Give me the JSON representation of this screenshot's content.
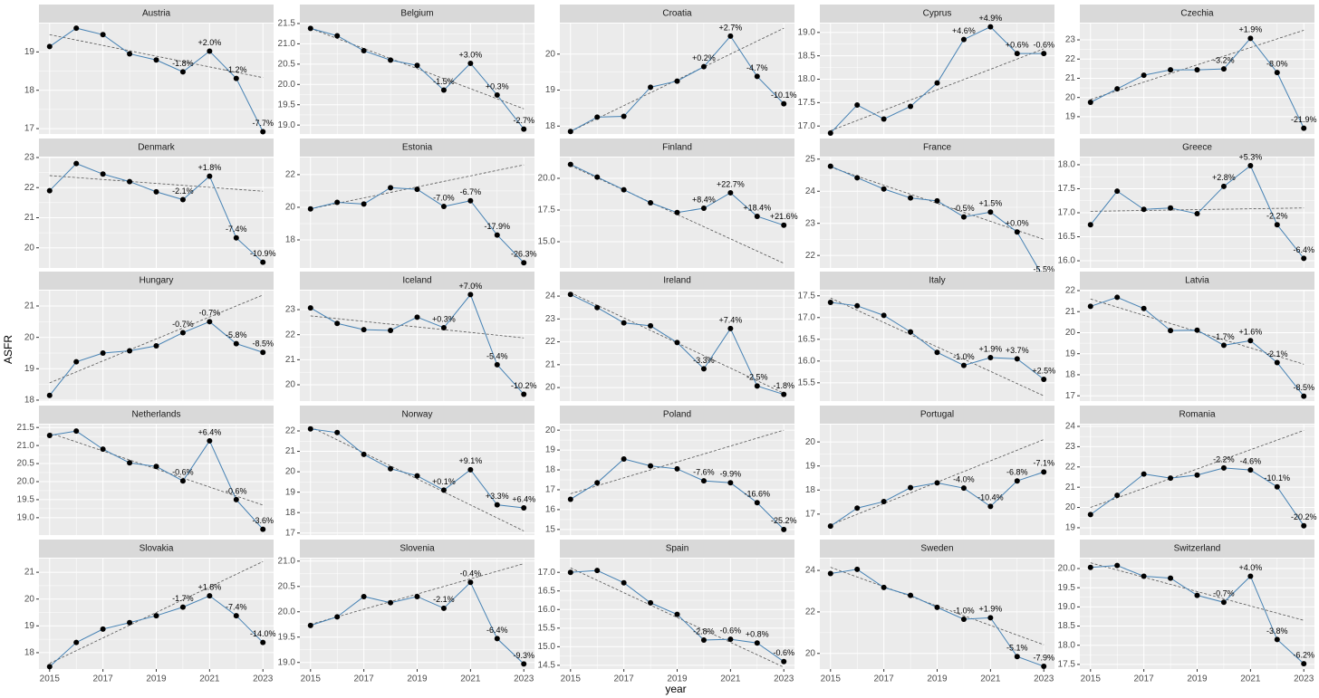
{
  "chart_data": {
    "type": "line",
    "x_label": "year",
    "y_label": "ASFR",
    "x": [
      2015,
      2016,
      2017,
      2018,
      2019,
      2020,
      2021,
      2022,
      2023
    ],
    "xlim": [
      2014.6,
      2023.4
    ],
    "xticks": [
      2015,
      2017,
      2019,
      2021,
      2023
    ],
    "annotation_x": [
      2020,
      2021,
      2022,
      2023
    ],
    "color": "#4682b4",
    "point_color": "#000000",
    "trend_color": "#555555",
    "grid": true,
    "panels": [
      {
        "title": "Austria",
        "values": [
          19.14,
          19.62,
          19.45,
          18.95,
          18.79,
          18.48,
          19.02,
          18.31,
          16.92
        ],
        "trend": [
          19.45,
          18.33
        ],
        "annotations": [
          "-1.8%",
          "+2.0%",
          "-1.2%",
          "-7.7%"
        ],
        "ylim": [
          16.86,
          19.74
        ],
        "yticks": [
          17,
          18,
          19
        ]
      },
      {
        "title": "Belgium",
        "values": [
          21.38,
          21.2,
          20.83,
          20.6,
          20.47,
          19.86,
          20.52,
          19.74,
          18.9
        ],
        "trend": [
          21.38,
          19.4
        ],
        "annotations": [
          "-1.5%",
          "+3.0%",
          "+0.3%",
          "-2.7%"
        ],
        "ylim": [
          18.78,
          21.5
        ],
        "yticks": [
          {
            "value": 19,
            "label": "19.0"
          },
          19.5,
          {
            "value": 20,
            "label": "20.0"
          },
          20.5,
          {
            "value": 21,
            "label": "21.0"
          },
          21.5
        ]
      },
      {
        "title": "Croatia",
        "values": [
          17.85,
          18.25,
          18.27,
          19.08,
          19.25,
          19.65,
          20.5,
          19.38,
          18.62
        ],
        "trend": [
          17.85,
          20.72
        ],
        "annotations": [
          "+0.2%",
          "+2.7%",
          "-4.7%",
          "-10.1%"
        ],
        "ylim": [
          17.78,
          20.85
        ],
        "yticks": [
          18,
          19,
          20
        ]
      },
      {
        "title": "Cyprus",
        "values": [
          16.85,
          17.45,
          17.15,
          17.42,
          17.92,
          18.85,
          19.12,
          18.55,
          18.55
        ],
        "trend": [
          16.9,
          18.65
        ],
        "annotations": [
          "+4.6%",
          "+4.9%",
          "+0.6%",
          "-0.6%"
        ],
        "ylim": [
          16.83,
          19.19
        ],
        "yticks": [
          {
            "value": 17,
            "label": "17.0"
          },
          17.5,
          {
            "value": 18,
            "label": "18.0"
          },
          18.5,
          {
            "value": 19,
            "label": "19.0"
          }
        ]
      },
      {
        "title": "Czechia",
        "values": [
          19.75,
          20.45,
          21.16,
          21.44,
          21.44,
          21.49,
          23.08,
          21.3,
          18.4
        ],
        "trend": [
          19.9,
          23.5
        ],
        "annotations": [
          "-3.2%",
          "+1.9%",
          "-8.0%",
          "-21.9%"
        ],
        "ylim": [
          18.1,
          23.85
        ],
        "yticks": [
          19,
          20,
          21,
          22,
          23
        ]
      },
      {
        "title": "Denmark",
        "values": [
          21.9,
          22.8,
          22.45,
          22.2,
          21.86,
          21.6,
          22.38,
          20.33,
          19.52
        ],
        "trend": [
          22.4,
          21.88
        ],
        "annotations": [
          "-2.1%",
          "+1.8%",
          "-7.4%",
          "-10.9%"
        ],
        "ylim": [
          19.33,
          23.0
        ],
        "yticks": [
          20,
          21,
          22,
          23
        ]
      },
      {
        "title": "Estonia",
        "values": [
          19.9,
          20.3,
          20.2,
          21.2,
          21.1,
          20.05,
          20.4,
          18.3,
          16.6
        ],
        "trend": [
          19.9,
          22.6
        ],
        "annotations": [
          "-7.0%",
          "-6.7%",
          "-17.9%",
          "-26.3%"
        ],
        "ylim": [
          16.28,
          23.05
        ],
        "yticks": [
          18,
          20,
          22
        ]
      },
      {
        "title": "Finland",
        "values": [
          21.1,
          20.1,
          19.1,
          18.07,
          17.3,
          17.64,
          18.86,
          17.0,
          16.3
        ],
        "trend": [
          21.0,
          13.3
        ],
        "annotations": [
          "+8.4%",
          "+22.7%",
          "+18.4%",
          "+21.6%"
        ],
        "ylim": [
          12.93,
          21.64
        ],
        "yticks": [
          {
            "value": 15,
            "label": "15.0"
          },
          17.5,
          {
            "value": 20,
            "label": "20.0"
          }
        ]
      },
      {
        "title": "France",
        "values": [
          24.78,
          24.42,
          24.07,
          23.79,
          23.7,
          23.2,
          23.35,
          22.73,
          21.3
        ],
        "trend": [
          24.75,
          22.5
        ],
        "annotations": [
          "-0.5%",
          "+1.5%",
          "+0.0%",
          "-5.5%"
        ],
        "ylim": [
          21.61,
          25.05
        ],
        "yticks": [
          22,
          23,
          24,
          25
        ]
      },
      {
        "title": "Greece",
        "values": [
          16.75,
          17.45,
          17.07,
          17.1,
          16.98,
          17.55,
          17.98,
          16.75,
          16.05
        ],
        "trend": [
          17.03,
          17.1
        ],
        "annotations": [
          "+2.8%",
          "+5.3%",
          "-2.2%",
          "-6.4%"
        ],
        "ylim": [
          15.85,
          18.15
        ],
        "yticks": [
          {
            "value": 16,
            "label": "16.0"
          },
          16.5,
          {
            "value": 17,
            "label": "17.0"
          },
          17.5,
          {
            "value": 18,
            "label": "18.0"
          }
        ]
      },
      {
        "title": "Hungary",
        "values": [
          18.15,
          19.22,
          19.5,
          19.57,
          19.73,
          20.15,
          20.5,
          19.8,
          19.52
        ],
        "trend": [
          18.55,
          21.35
        ],
        "annotations": [
          "-0.7%",
          "-0.7%",
          "-5.8%",
          "-8.5%"
        ],
        "ylim": [
          17.97,
          21.49
        ],
        "yticks": [
          18,
          19,
          20,
          21
        ]
      },
      {
        "title": "Iceland",
        "values": [
          23.07,
          22.45,
          22.2,
          22.17,
          22.7,
          22.28,
          23.6,
          20.8,
          19.62
        ],
        "trend": [
          22.75,
          21.87
        ],
        "annotations": [
          "+0.3%",
          "+7.0%",
          "-5.4%",
          "-10.2%"
        ],
        "ylim": [
          19.35,
          23.76
        ],
        "yticks": [
          20,
          21,
          22,
          23
        ]
      },
      {
        "title": "Ireland",
        "values": [
          24.07,
          23.5,
          22.83,
          22.7,
          21.97,
          20.82,
          22.58,
          20.07,
          19.7
        ],
        "trend": [
          24.15,
          19.75
        ],
        "annotations": [
          "-3.3%",
          "+7.4%",
          "-2.5%",
          "-1.8%"
        ],
        "ylim": [
          19.41,
          24.24
        ],
        "yticks": [
          20,
          21,
          22,
          23,
          24
        ]
      },
      {
        "title": "Italy",
        "values": [
          17.35,
          17.27,
          17.05,
          16.67,
          16.2,
          15.9,
          16.08,
          16.05,
          15.58
        ],
        "trend": [
          17.45,
          15.2
        ],
        "annotations": [
          "-1.0%",
          "+1.9%",
          "+3.7%",
          "+2.5%"
        ],
        "ylim": [
          15.08,
          17.62
        ],
        "yticks": [
          15.5,
          {
            "value": 16,
            "label": "16.0"
          },
          16.5,
          {
            "value": 17,
            "label": "17.0"
          },
          17.5
        ]
      },
      {
        "title": "Latvia",
        "values": [
          21.25,
          21.68,
          21.15,
          20.1,
          20.12,
          19.4,
          19.62,
          18.58,
          16.98
        ],
        "trend": [
          21.6,
          18.5
        ],
        "annotations": [
          "-1.7%",
          "+1.6%",
          "-2.1%",
          "-8.5%"
        ],
        "ylim": [
          16.75,
          22.0
        ],
        "yticks": [
          17,
          18,
          19,
          20,
          21,
          22
        ]
      },
      {
        "title": "Netherlands",
        "values": [
          21.28,
          21.4,
          20.9,
          20.52,
          20.42,
          20.02,
          21.13,
          19.5,
          18.68
        ],
        "trend": [
          21.35,
          19.35
        ],
        "annotations": [
          "-0.6%",
          "+6.4%",
          "-0.6%",
          "-3.6%"
        ],
        "ylim": [
          18.52,
          21.58
        ],
        "yticks": [
          {
            "value": 19,
            "label": "19.0"
          },
          19.5,
          {
            "value": 20,
            "label": "20.0"
          },
          20.5,
          {
            "value": 21,
            "label": "21.0"
          },
          21.5
        ]
      },
      {
        "title": "Norway",
        "values": [
          22.1,
          21.92,
          20.85,
          20.15,
          19.8,
          19.1,
          20.1,
          18.38,
          18.23
        ],
        "trend": [
          22.2,
          17.1
        ],
        "annotations": [
          "+0.1%",
          "+9.1%",
          "+3.3%",
          "+6.4%"
        ],
        "ylim": [
          16.9,
          22.31
        ],
        "yticks": [
          17,
          18,
          19,
          20,
          21,
          22
        ]
      },
      {
        "title": "Poland",
        "values": [
          16.52,
          17.35,
          18.55,
          18.2,
          18.05,
          17.45,
          17.35,
          16.35,
          15.0
        ],
        "trend": [
          16.8,
          20.0
        ],
        "annotations": [
          "-7.6%",
          "-9.9%",
          "-16.6%",
          "-25.2%"
        ],
        "ylim": [
          14.72,
          20.28
        ],
        "yticks": [
          15,
          16,
          17,
          18,
          19,
          20
        ]
      },
      {
        "title": "Portugal",
        "values": [
          16.5,
          17.25,
          17.52,
          18.1,
          18.3,
          18.08,
          17.32,
          18.38,
          18.75
        ],
        "trend": [
          16.55,
          20.1
        ],
        "annotations": [
          "-4.0%",
          "-10.4%",
          "-6.8%",
          "-7.1%"
        ],
        "ylim": [
          16.13,
          20.72
        ],
        "yticks": [
          17,
          18,
          19,
          20
        ]
      },
      {
        "title": "Romania",
        "values": [
          19.65,
          20.6,
          21.65,
          21.45,
          21.6,
          21.95,
          21.85,
          21.02,
          19.1
        ],
        "trend": [
          20.0,
          23.8
        ],
        "annotations": [
          "-2.2%",
          "-4.6%",
          "-10.1%",
          "-20.2%"
        ],
        "ylim": [
          18.64,
          24.09
        ],
        "yticks": [
          19,
          20,
          21,
          22,
          23,
          24
        ]
      },
      {
        "title": "Slovakia",
        "values": [
          17.48,
          18.38,
          18.88,
          19.12,
          19.38,
          19.7,
          20.12,
          19.38,
          18.38
        ],
        "trend": [
          17.6,
          21.4
        ],
        "annotations": [
          "-1.7%",
          "+1.8%",
          "-7.4%",
          "-14.0%"
        ],
        "ylim": [
          17.39,
          21.51
        ],
        "yticks": [
          18,
          19,
          20,
          21
        ]
      },
      {
        "title": "Slovenia",
        "values": [
          19.73,
          19.9,
          20.3,
          20.18,
          20.3,
          20.07,
          20.58,
          19.47,
          18.97
        ],
        "trend": [
          19.75,
          20.95
        ],
        "annotations": [
          "-2.1%",
          "-0.4%",
          "-6.4%",
          "-9.3%"
        ],
        "ylim": [
          18.87,
          21.05
        ],
        "yticks": [
          {
            "value": 19,
            "label": "19.0"
          },
          19.5,
          {
            "value": 20,
            "label": "20.0"
          },
          20.5,
          {
            "value": 21,
            "label": "21.0"
          }
        ]
      },
      {
        "title": "Spain",
        "values": [
          17.0,
          17.05,
          16.72,
          16.18,
          15.87,
          15.18,
          15.2,
          15.1,
          14.6
        ],
        "trend": [
          17.12,
          14.45
        ],
        "annotations": [
          "-2.8%",
          "-0.6%",
          "+0.8%",
          "-0.6%"
        ],
        "ylim": [
          14.4,
          17.37
        ],
        "yticks": [
          14.5,
          {
            "value": 15,
            "label": "15.0"
          },
          15.5,
          {
            "value": 16,
            "label": "16.0"
          },
          16.5,
          {
            "value": 17,
            "label": "17.0"
          }
        ]
      },
      {
        "title": "Sweden",
        "values": [
          23.85,
          24.05,
          23.18,
          22.8,
          22.22,
          21.65,
          21.72,
          19.85,
          19.38
        ],
        "trend": [
          24.15,
          20.42
        ],
        "annotations": [
          "-1.0%",
          "+1.9%",
          "-5.1%",
          "-7.9%"
        ],
        "ylim": [
          19.25,
          24.57
        ],
        "yticks": [
          20,
          22,
          24
        ]
      },
      {
        "title": "Switzerland",
        "values": [
          20.03,
          20.08,
          19.8,
          19.75,
          19.3,
          19.12,
          19.8,
          18.15,
          17.52
        ],
        "trend": [
          20.15,
          18.65
        ],
        "annotations": [
          "-0.7%",
          "+4.0%",
          "-3.8%",
          "-6.2%"
        ],
        "ylim": [
          17.38,
          20.26
        ],
        "yticks": [
          17.5,
          {
            "value": 18,
            "label": "18.0"
          },
          18.5,
          {
            "value": 19,
            "label": "19.0"
          },
          19.5,
          {
            "value": 20,
            "label": "20.0"
          }
        ]
      }
    ]
  }
}
